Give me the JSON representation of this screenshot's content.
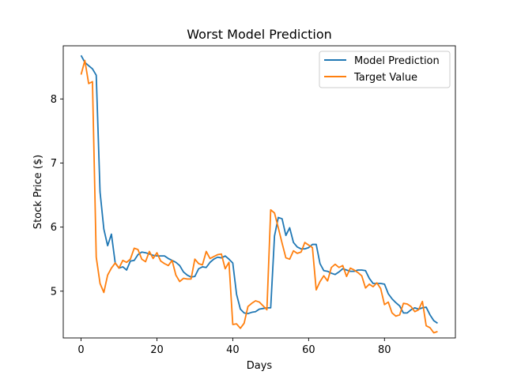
{
  "chart_data": {
    "type": "line",
    "title": "Worst Model Prediction",
    "xlabel": "Days",
    "ylabel": "Stock Price ($)",
    "xlim": [
      -4.7,
      98.7
    ],
    "ylim": [
      4.27,
      8.83
    ],
    "xticks": [
      0,
      20,
      40,
      60,
      80
    ],
    "yticks": [
      5,
      6,
      7,
      8
    ],
    "grid": false,
    "legend_position": "top-right",
    "series": [
      {
        "name": "Model Prediction",
        "color": "#1f77b4",
        "x": [
          0,
          1,
          2,
          3,
          4,
          5,
          6,
          7,
          8,
          9,
          10,
          11,
          12,
          13,
          14,
          15,
          16,
          17,
          18,
          19,
          20,
          21,
          22,
          23,
          24,
          25,
          26,
          27,
          28,
          29,
          30,
          31,
          32,
          33,
          34,
          35,
          36,
          37,
          38,
          39,
          40,
          41,
          42,
          43,
          44,
          45,
          46,
          47,
          48,
          49,
          50,
          51,
          52,
          53,
          54,
          55,
          56,
          57,
          58,
          59,
          60,
          61,
          62,
          63,
          64,
          65,
          66,
          67,
          68,
          69,
          70,
          71,
          72,
          73,
          74,
          75,
          76,
          77,
          78,
          79,
          80,
          81,
          82,
          83,
          84,
          85,
          86,
          87,
          88,
          89,
          90,
          91,
          92,
          93,
          94
        ],
        "values": [
          8.68,
          8.57,
          8.52,
          8.47,
          8.37,
          6.55,
          5.97,
          5.71,
          5.89,
          5.44,
          5.36,
          5.38,
          5.33,
          5.47,
          5.48,
          5.57,
          5.61,
          5.6,
          5.58,
          5.56,
          5.55,
          5.55,
          5.55,
          5.51,
          5.48,
          5.45,
          5.4,
          5.3,
          5.25,
          5.22,
          5.23,
          5.35,
          5.38,
          5.37,
          5.45,
          5.5,
          5.53,
          5.52,
          5.55,
          5.5,
          5.44,
          4.95,
          4.72,
          4.66,
          4.65,
          4.67,
          4.68,
          4.72,
          4.73,
          4.74,
          4.74,
          5.86,
          6.15,
          6.13,
          5.87,
          5.99,
          5.76,
          5.69,
          5.66,
          5.66,
          5.68,
          5.73,
          5.73,
          5.43,
          5.32,
          5.31,
          5.28,
          5.26,
          5.3,
          5.35,
          5.33,
          5.31,
          5.31,
          5.33,
          5.33,
          5.32,
          5.2,
          5.12,
          5.12,
          5.12,
          5.11,
          4.96,
          4.88,
          4.82,
          4.77,
          4.66,
          4.66,
          4.71,
          4.74,
          4.72,
          4.74,
          4.75,
          4.63,
          4.54,
          4.5
        ]
      },
      {
        "name": "Target Value",
        "color": "#ff7f0e",
        "x": [
          0,
          1,
          2,
          3,
          4,
          5,
          6,
          7,
          8,
          9,
          10,
          11,
          12,
          13,
          14,
          15,
          16,
          17,
          18,
          19,
          20,
          21,
          22,
          23,
          24,
          25,
          26,
          27,
          28,
          29,
          30,
          31,
          32,
          33,
          34,
          35,
          36,
          37,
          38,
          39,
          40,
          41,
          42,
          43,
          44,
          45,
          46,
          47,
          48,
          49,
          50,
          51,
          52,
          53,
          54,
          55,
          56,
          57,
          58,
          59,
          60,
          61,
          62,
          63,
          64,
          65,
          66,
          67,
          68,
          69,
          70,
          71,
          72,
          73,
          74,
          75,
          76,
          77,
          78,
          79,
          80,
          81,
          82,
          83,
          84,
          85,
          86,
          87,
          88,
          89,
          90,
          91,
          92,
          93,
          94
        ],
        "values": [
          8.38,
          8.6,
          8.24,
          8.27,
          5.53,
          5.12,
          4.98,
          5.25,
          5.36,
          5.44,
          5.36,
          5.48,
          5.45,
          5.5,
          5.67,
          5.65,
          5.5,
          5.46,
          5.62,
          5.51,
          5.6,
          5.47,
          5.43,
          5.4,
          5.48,
          5.25,
          5.15,
          5.2,
          5.19,
          5.19,
          5.5,
          5.43,
          5.41,
          5.62,
          5.51,
          5.54,
          5.57,
          5.58,
          5.35,
          5.45,
          4.48,
          4.49,
          4.42,
          4.5,
          4.76,
          4.81,
          4.85,
          4.83,
          4.77,
          4.71,
          6.27,
          6.22,
          5.99,
          5.75,
          5.52,
          5.5,
          5.63,
          5.59,
          5.61,
          5.76,
          5.72,
          5.68,
          5.02,
          5.15,
          5.24,
          5.16,
          5.37,
          5.42,
          5.37,
          5.4,
          5.23,
          5.36,
          5.33,
          5.29,
          5.24,
          5.05,
          5.11,
          5.07,
          5.13,
          5.04,
          4.79,
          4.83,
          4.66,
          4.61,
          4.63,
          4.81,
          4.8,
          4.76,
          4.68,
          4.71,
          4.84,
          4.46,
          4.43,
          4.35,
          4.37
        ]
      }
    ]
  }
}
